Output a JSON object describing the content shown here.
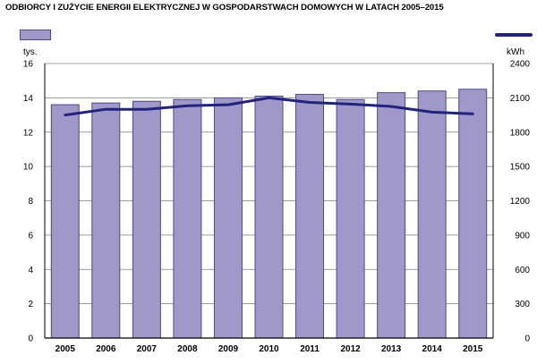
{
  "title": "ODBIORCY I ZUŻYCIE ENERGII ELEKTRYCZNEJ W GOSPODARSTWACH DOMOWYCH W LATACH 2005–2015",
  "units": {
    "left": "tys.",
    "right": "kWh"
  },
  "colors": {
    "bar": "#9f98c9",
    "bar_stroke": "#4f4a86",
    "line": "#23237b",
    "grid": "#7d7d7d"
  },
  "chart_data": {
    "type": "bar",
    "title": "ODBIORCY I ZUŻYCIE ENERGII ELEKTRYCZNEJ W GOSPODARSTWACH DOMOWYCH W LATACH 2005–2015",
    "categories": [
      "2005",
      "2006",
      "2007",
      "2008",
      "2009",
      "2010",
      "2011",
      "2012",
      "2013",
      "2014",
      "2015"
    ],
    "series": [
      {
        "type": "bar",
        "axis": "left",
        "values": [
          13.6,
          13.7,
          13.8,
          13.9,
          14.0,
          14.1,
          14.2,
          13.9,
          14.3,
          14.4,
          14.5
        ]
      },
      {
        "type": "line",
        "axis": "right",
        "values": [
          1950,
          2000,
          2000,
          2030,
          2040,
          2100,
          2060,
          2045,
          2025,
          1975,
          1960
        ]
      }
    ],
    "y_left": {
      "label": "tys.",
      "min": 0,
      "max": 16,
      "ticks": [
        0,
        2,
        4,
        6,
        8,
        10,
        12,
        14,
        16
      ]
    },
    "y_right": {
      "label": "kWh",
      "min": 0,
      "max": 2400,
      "ticks": [
        0,
        300,
        600,
        900,
        1200,
        1500,
        1800,
        2100,
        2400
      ]
    },
    "grid": true,
    "legend": "top"
  }
}
